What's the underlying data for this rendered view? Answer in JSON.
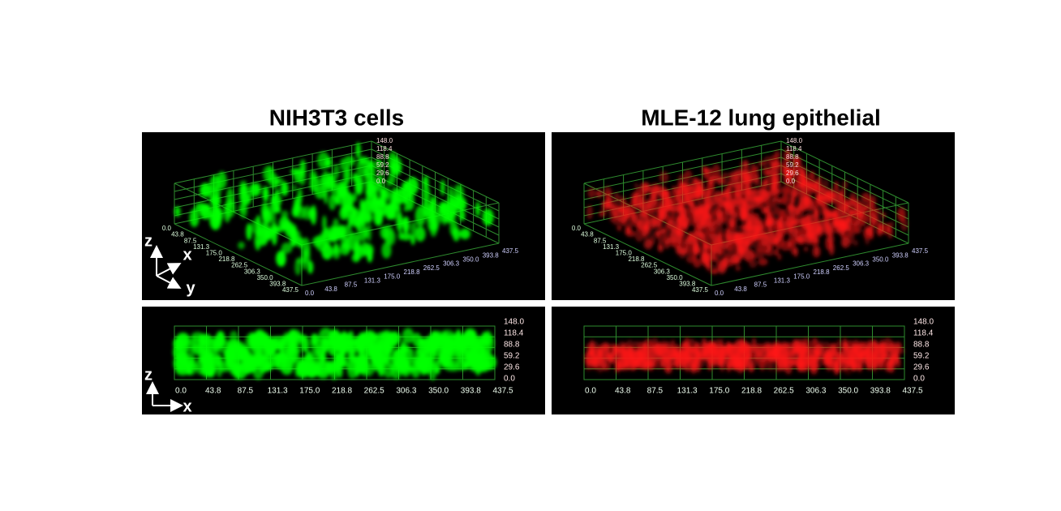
{
  "panels": [
    {
      "title": "NIH3T3 cells",
      "color": "#00ff00"
    },
    {
      "title": "MLE-12 lung epithelial",
      "color": "#ff1a1a"
    }
  ],
  "axis_ticks": {
    "x": [
      "0.0",
      "43.8",
      "87.5",
      "131.3",
      "175.0",
      "218.8",
      "262.5",
      "306.3",
      "350.0",
      "393.8",
      "437.5"
    ],
    "y": [
      "0.0",
      "43.8",
      "87.5",
      "131.3",
      "175.0",
      "218.8",
      "262.5",
      "306.3",
      "350.0",
      "393.8",
      "437.5"
    ],
    "z": [
      "0.0",
      "29.6",
      "59.2",
      "88.8",
      "118.4",
      "148.0"
    ]
  },
  "axis_letters": {
    "top": [
      "z",
      "x",
      "y"
    ],
    "bottom": [
      "z",
      "x"
    ]
  }
}
